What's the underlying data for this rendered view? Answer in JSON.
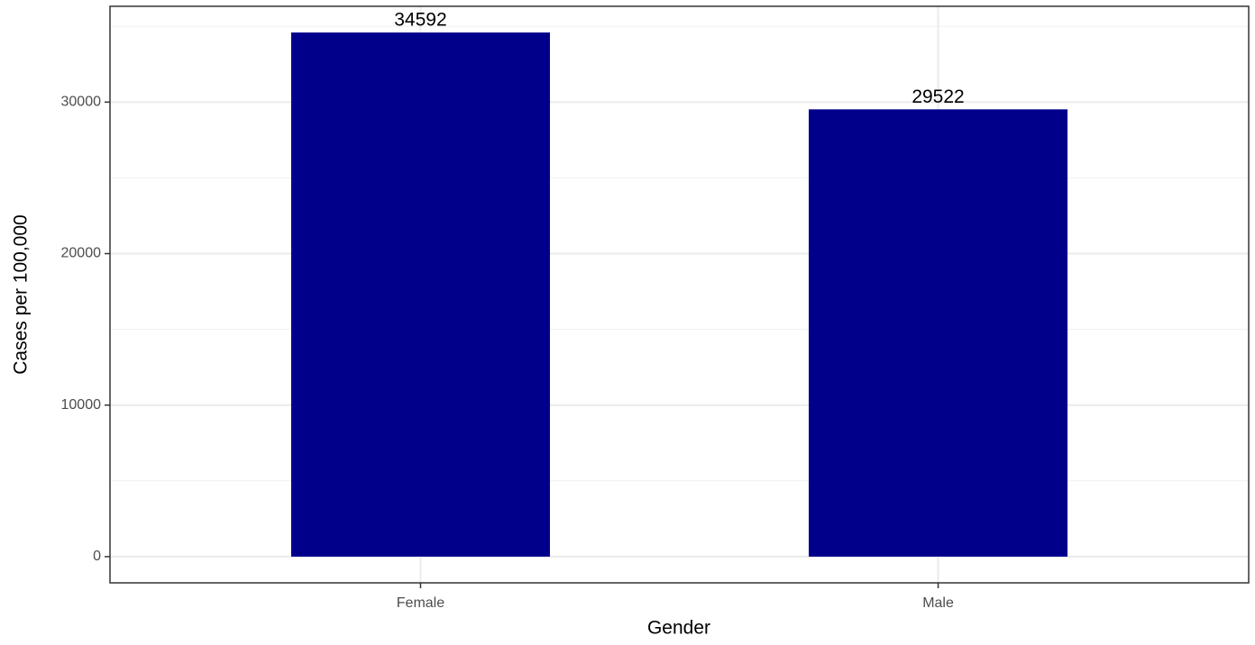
{
  "chart_data": {
    "type": "bar",
    "x_label": "Gender",
    "y_label": "Cases per 100,000",
    "categories": [
      "Female",
      "Male"
    ],
    "values": [
      34592,
      29522
    ],
    "color": "#00008b",
    "ylim": [
      -1729.6,
      36321.6
    ],
    "yticks": [
      0,
      10000,
      20000,
      30000
    ],
    "minor_yticks": [
      5000,
      15000,
      25000,
      35000
    ],
    "grid": true
  }
}
